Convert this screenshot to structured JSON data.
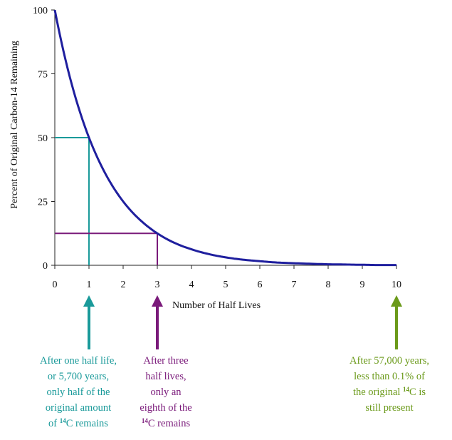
{
  "chart_data": {
    "type": "line",
    "title": "",
    "xlabel": "Number of Half Lives",
    "ylabel": "Percent of Original Carbon-14 Remaining",
    "xlim": [
      0,
      10
    ],
    "ylim": [
      0,
      100
    ],
    "x_ticks": [
      "0",
      "1",
      "2",
      "3",
      "4",
      "5",
      "6",
      "7",
      "8",
      "9",
      "10"
    ],
    "y_ticks": [
      "0",
      "25",
      "50",
      "75",
      "100"
    ],
    "series": [
      {
        "color": "#1f1f9e",
        "x": [
          0,
          0.5,
          1,
          1.5,
          2,
          2.5,
          3,
          3.5,
          4,
          4.5,
          5,
          5.5,
          6,
          6.5,
          7,
          7.5,
          8,
          8.5,
          9,
          9.5,
          10
        ],
        "y": [
          100,
          70.7,
          50,
          35.4,
          25,
          17.7,
          12.5,
          8.8,
          6.25,
          4.4,
          3.1,
          2.2,
          1.6,
          1.1,
          0.8,
          0.6,
          0.4,
          0.3,
          0.2,
          0.1,
          0.1
        ]
      }
    ],
    "guides": [
      {
        "x": 1,
        "y": 50,
        "color": "#1a9a9a"
      },
      {
        "x": 3,
        "y": 12.5,
        "color": "#7a1a7a"
      }
    ],
    "grid": false,
    "legend": "none"
  },
  "annotations": [
    {
      "x": 1,
      "color": "#1a9a9a",
      "lines": [
        "After one half life,",
        "or 5,700 years,",
        "only half of the",
        "original amount",
        "of {14}C remains"
      ]
    },
    {
      "x": 3,
      "color": "#7a1a7a",
      "lines": [
        "After three",
        "half lives,",
        "only an",
        "eighth of the",
        "{14}C remains"
      ]
    },
    {
      "x": 10,
      "color": "#6b9a1a",
      "lines": [
        "After 57,000 years,",
        "less than 0.1% of",
        "the original {14}C is",
        "still present"
      ]
    }
  ]
}
